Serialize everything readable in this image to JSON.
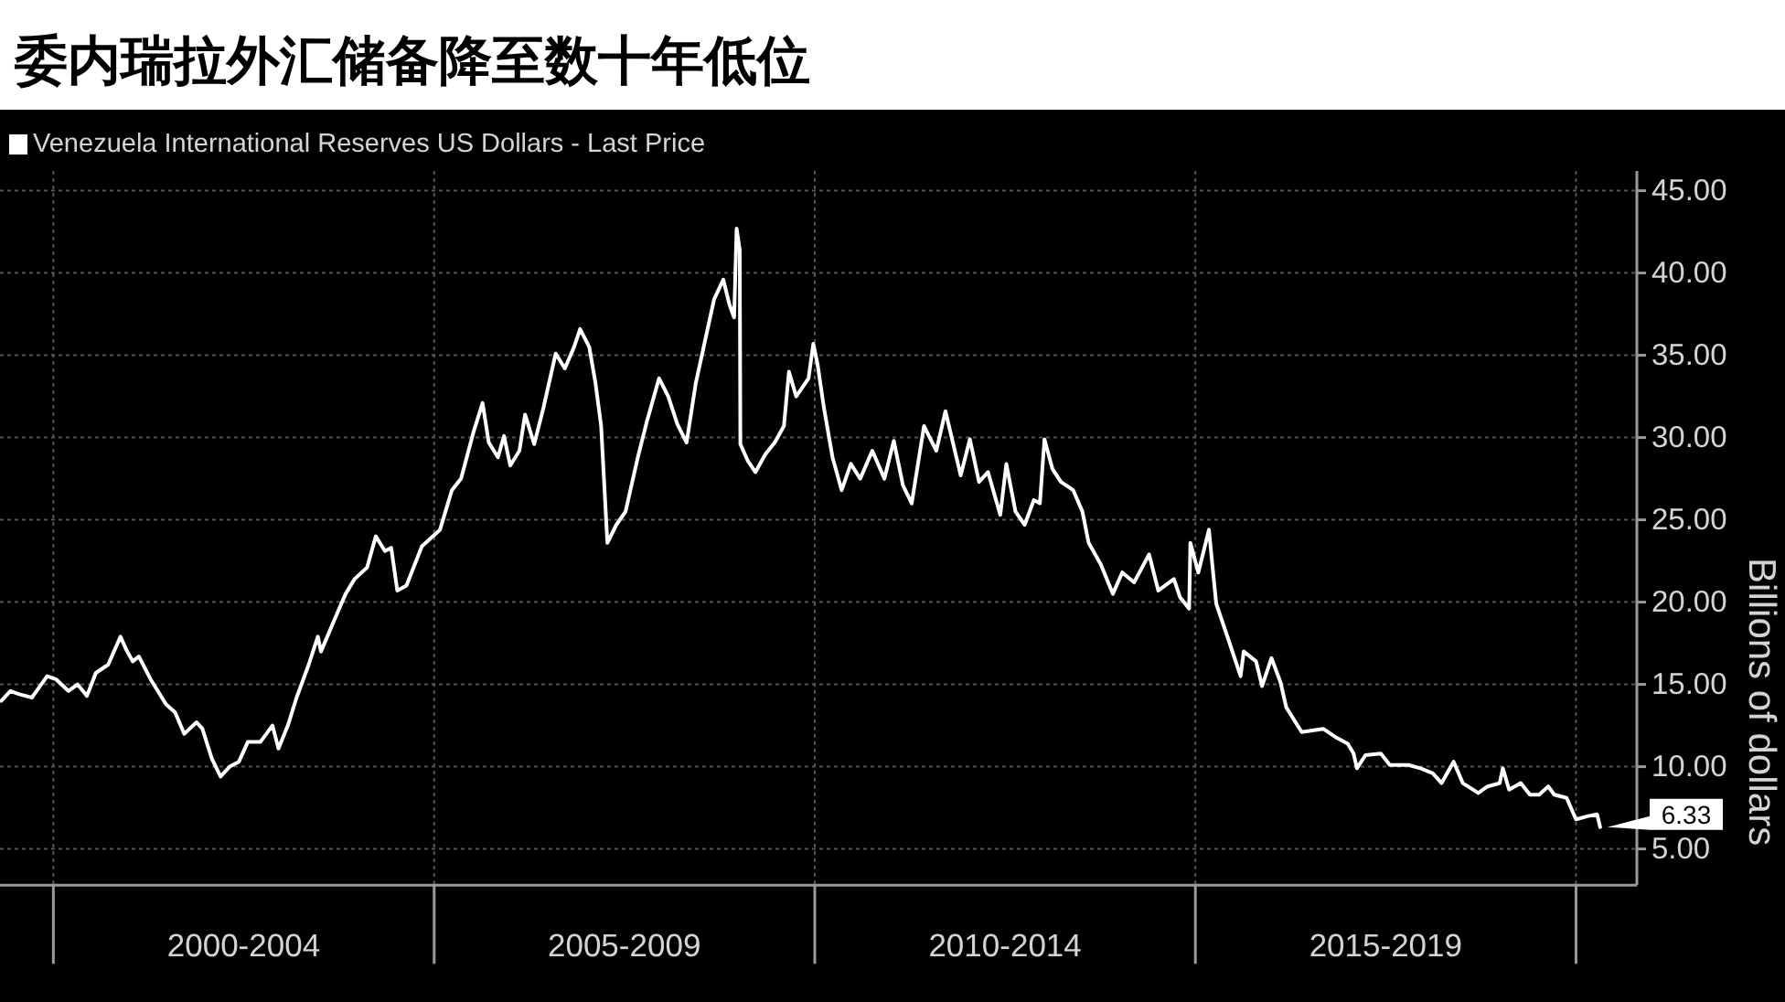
{
  "chart_data": {
    "type": "line",
    "title": "委内瑞拉外汇储备降至数十年低位",
    "ylabel": "Billions of dollars",
    "x": [
      "1999-04-26",
      "1999-06-09",
      "1999-07-22",
      "1999-09-20",
      "1999-12-02",
      "2000-01-15",
      "2000-03-13",
      "2000-04-26",
      "2000-06-10",
      "2000-07-23",
      "2000-09-20",
      "2000-11-18",
      "2000-12-16",
      "2001-01-16",
      "2001-02-14",
      "2001-04-12",
      "2001-06-24",
      "2001-08-07",
      "2001-09-20",
      "2001-11-18",
      "2001-12-16",
      "2002-01-30",
      "2002-03-13",
      "2002-04-26",
      "2002-06-09",
      "2002-07-22",
      "2002-09-20",
      "2002-11-17",
      "2002-12-16",
      "2003-01-30",
      "2003-03-13",
      "2003-05-10",
      "2003-06-23",
      "2003-07-08",
      "2003-09-06",
      "2003-11-03",
      "2003-12-16",
      "2004-02-14",
      "2004-03-27",
      "2004-05-10",
      "2004-06-09",
      "2004-07-08",
      "2004-08-21",
      "2004-11-03",
      "2005-01-29",
      "2005-03-27",
      "2005-05-10",
      "2005-07-08",
      "2005-08-21",
      "2005-09-20",
      "2005-11-03",
      "2005-12-02",
      "2006-01-01",
      "2006-02-14",
      "2006-03-13",
      "2006-04-26",
      "2006-06-09",
      "2006-08-07",
      "2006-09-20",
      "2006-11-03",
      "2006-12-02",
      "2007-01-15",
      "2007-02-14",
      "2007-03-13",
      "2007-04-12",
      "2007-05-25",
      "2007-07-08",
      "2007-09-05",
      "2007-10-19",
      "2007-12-16",
      "2008-01-29",
      "2008-03-13",
      "2008-04-26",
      "2008-06-09",
      "2008-07-22",
      "2008-09-05",
      "2008-10-19",
      "2008-11-17",
      "2008-12-10",
      "2008-12-22",
      "2009-01-06",
      "2009-01-09",
      "2009-02-13",
      "2009-03-22",
      "2009-05-10",
      "2009-06-23",
      "2009-08-06",
      "2009-08-30",
      "2009-10-04",
      "2009-12-02",
      "2009-12-25",
      "2010-01-15",
      "2010-02-14",
      "2010-03-27",
      "2010-05-10",
      "2010-06-23",
      "2010-08-07",
      "2010-10-04",
      "2010-12-01",
      "2011-01-15",
      "2011-02-28",
      "2011-04-11",
      "2011-06-09",
      "2011-08-07",
      "2011-09-20",
      "2011-12-02",
      "2012-01-15",
      "2012-02-28",
      "2012-04-11",
      "2012-06-09",
      "2012-07-08",
      "2012-08-21",
      "2012-10-04",
      "2012-11-17",
      "2012-12-16",
      "2013-01-07",
      "2013-02-14",
      "2013-03-27",
      "2013-05-25",
      "2013-07-08",
      "2013-08-07",
      "2013-10-04",
      "2013-12-01",
      "2014-01-15",
      "2014-03-13",
      "2014-05-24",
      "2014-07-07",
      "2014-09-20",
      "2014-10-19",
      "2014-12-02",
      "2014-12-08",
      "2015-01-15",
      "2015-03-07",
      "2015-03-27",
      "2015-04-11",
      "2015-06-09",
      "2015-08-06",
      "2015-08-21",
      "2015-10-19",
      "2015-11-17",
      "2016-01-01",
      "2016-02-14",
      "2016-03-12",
      "2016-05-25",
      "2016-09-05",
      "2016-11-03",
      "2017-01-01",
      "2017-01-29",
      "2017-02-14",
      "2017-03-27",
      "2017-06-09",
      "2017-07-22",
      "2017-10-19",
      "2017-12-16",
      "2018-02-13",
      "2018-03-27",
      "2018-05-24",
      "2018-07-07",
      "2018-09-19",
      "2018-11-03",
      "2018-12-31",
      "2019-01-15",
      "2019-02-14",
      "2019-04-11",
      "2019-05-25",
      "2019-07-08",
      "2019-08-21",
      "2019-09-19",
      "2019-11-17",
      "2020-01-01",
      "2020-02-28",
      "2020-04-11",
      "2020-04-26"
    ],
    "series": [
      {
        "name": "Venezuela International Reserves US Dollars - Last Price",
        "color": "#ffffff",
        "values": [
          14.0,
          14.6,
          14.4,
          14.2,
          15.5,
          15.3,
          14.6,
          15.0,
          14.3,
          15.7,
          16.2,
          17.9,
          17.1,
          16.4,
          16.7,
          15.3,
          13.8,
          13.3,
          12.0,
          12.7,
          12.3,
          10.5,
          9.4,
          10.0,
          10.3,
          11.5,
          11.5,
          12.5,
          11.1,
          12.5,
          14.2,
          16.2,
          17.9,
          17.0,
          18.8,
          20.5,
          21.4,
          22.1,
          24.0,
          23.1,
          23.3,
          20.7,
          21.0,
          23.4,
          24.4,
          26.8,
          27.5,
          30.3,
          32.1,
          29.7,
          28.8,
          30.1,
          28.3,
          29.2,
          31.4,
          29.6,
          31.8,
          35.1,
          34.2,
          35.5,
          36.6,
          35.5,
          33.3,
          30.7,
          23.6,
          24.7,
          25.5,
          28.8,
          31.0,
          33.6,
          32.5,
          30.8,
          29.7,
          33.3,
          35.8,
          38.4,
          39.6,
          38.1,
          37.3,
          42.7,
          41.4,
          29.6,
          28.6,
          27.9,
          29.0,
          29.7,
          30.7,
          34.0,
          32.5,
          33.6,
          35.7,
          34.4,
          31.8,
          28.8,
          26.8,
          28.4,
          27.5,
          29.2,
          27.5,
          29.8,
          27.1,
          26.0,
          30.7,
          29.2,
          31.6,
          27.7,
          29.9,
          27.3,
          27.9,
          25.3,
          28.4,
          25.5,
          24.7,
          26.2,
          26.0,
          29.9,
          28.1,
          27.3,
          26.8,
          25.5,
          23.6,
          22.3,
          20.5,
          21.8,
          21.2,
          22.9,
          20.7,
          21.4,
          20.3,
          19.6,
          23.6,
          21.8,
          24.4,
          21.8,
          19.9,
          17.7,
          15.5,
          17.0,
          16.4,
          14.9,
          16.6,
          15.1,
          13.6,
          12.1,
          12.3,
          11.8,
          11.4,
          10.8,
          9.9,
          10.7,
          10.8,
          10.1,
          10.1,
          9.9,
          9.6,
          9.0,
          10.3,
          9.0,
          8.4,
          8.8,
          9.0,
          9.9,
          8.6,
          9.0,
          8.3,
          8.3,
          8.8,
          8.3,
          8.1,
          6.8,
          7.0,
          7.1,
          6.33
        ]
      }
    ],
    "xlim": [
      "1999-04-20",
      "2020-10-19"
    ],
    "xticks": [
      {
        "value": "2000-01-01",
        "label": null
      },
      {
        "value": "2002-07-02",
        "label": "2000-2004"
      },
      {
        "value": "2005-01-01",
        "label": null
      },
      {
        "value": "2007-07-02",
        "label": "2005-2009"
      },
      {
        "value": "2010-01-01",
        "label": null
      },
      {
        "value": "2012-07-02",
        "label": "2010-2014"
      },
      {
        "value": "2015-01-01",
        "label": null
      },
      {
        "value": "2017-07-02",
        "label": "2015-2019"
      },
      {
        "value": "2020-01-01",
        "label": null
      }
    ],
    "ylim": [
      2.8,
      46.2
    ],
    "yticks": [
      {
        "value": 5,
        "label": "5.00"
      },
      {
        "value": 10,
        "label": "10.00"
      },
      {
        "value": 15,
        "label": "15.00"
      },
      {
        "value": 20,
        "label": "20.00"
      },
      {
        "value": 25,
        "label": "25.00"
      },
      {
        "value": 30,
        "label": "30.00"
      },
      {
        "value": 35,
        "label": "35.00"
      },
      {
        "value": 40,
        "label": "40.00"
      },
      {
        "value": 45,
        "label": "45.00"
      }
    ],
    "grid": true,
    "legend": "top left",
    "annotations": [
      {
        "text": "6.33",
        "x": "2020-04-26",
        "y": 6.33
      }
    ]
  }
}
